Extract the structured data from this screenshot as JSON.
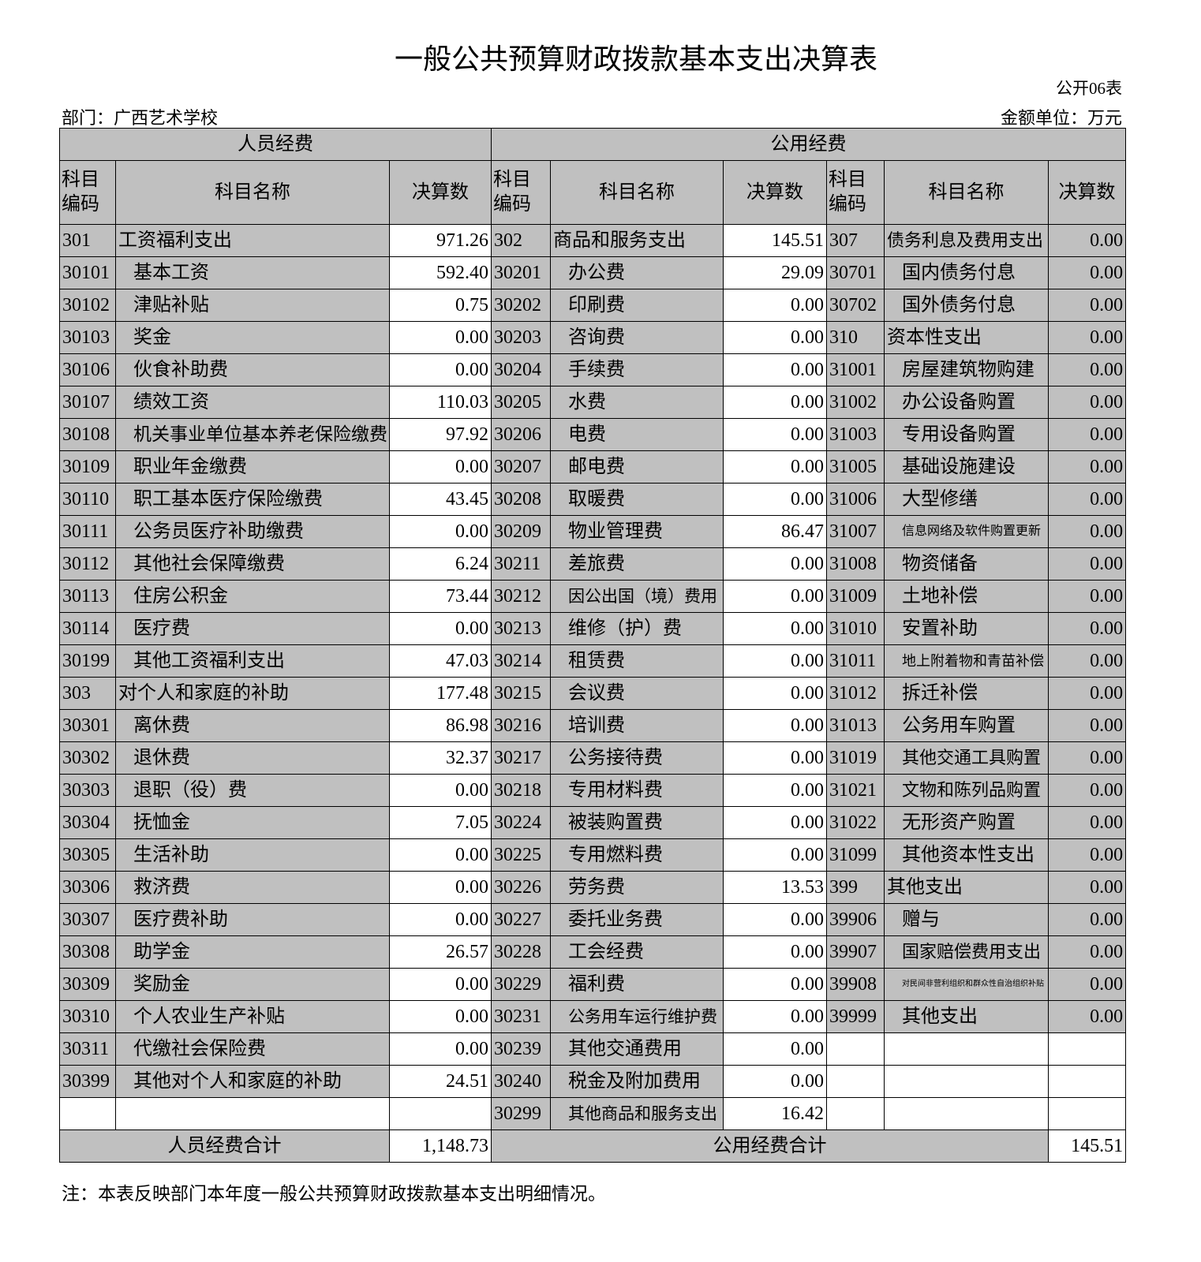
{
  "header": {
    "title": "一般公共预算财政拨款基本支出决算表",
    "form_no": "公开06表",
    "department": "部门：广西艺术学校",
    "unit": "金额单位：万元"
  },
  "table": {
    "groups": [
      "人员经费",
      "公用经费"
    ],
    "columns": [
      "科目编码",
      "科目名称",
      "决算数",
      "科目编码",
      "科目名称",
      "决算数",
      "科目编码",
      "科目名称",
      "决算数"
    ],
    "rows": [
      [
        "301",
        "工资福利支出",
        "971.26",
        "302",
        "商品和服务支出",
        "145.51",
        "307",
        "债务利息及费用支出",
        "0.00"
      ],
      [
        "30101",
        "基本工资",
        "592.40",
        "30201",
        "办公费",
        "29.09",
        "30701",
        "国内债务付息",
        "0.00"
      ],
      [
        "30102",
        "津贴补贴",
        "0.75",
        "30202",
        "印刷费",
        "0.00",
        "30702",
        "国外债务付息",
        "0.00"
      ],
      [
        "30103",
        "奖金",
        "0.00",
        "30203",
        "咨询费",
        "0.00",
        "310",
        "资本性支出",
        "0.00"
      ],
      [
        "30106",
        "伙食补助费",
        "0.00",
        "30204",
        "手续费",
        "0.00",
        "31001",
        "房屋建筑物购建",
        "0.00"
      ],
      [
        "30107",
        "绩效工资",
        "110.03",
        "30205",
        "水费",
        "0.00",
        "31002",
        "办公设备购置",
        "0.00"
      ],
      [
        "30108",
        "机关事业单位基本养老保险缴费",
        "97.92",
        "30206",
        "电费",
        "0.00",
        "31003",
        "专用设备购置",
        "0.00"
      ],
      [
        "30109",
        "职业年金缴费",
        "0.00",
        "30207",
        "邮电费",
        "0.00",
        "31005",
        "基础设施建设",
        "0.00"
      ],
      [
        "30110",
        "职工基本医疗保险缴费",
        "43.45",
        "30208",
        "取暖费",
        "0.00",
        "31006",
        "大型修缮",
        "0.00"
      ],
      [
        "30111",
        "公务员医疗补助缴费",
        "0.00",
        "30209",
        "物业管理费",
        "86.47",
        "31007",
        "信息网络及软件购置更新",
        "0.00"
      ],
      [
        "30112",
        "其他社会保障缴费",
        "6.24",
        "30211",
        "差旅费",
        "0.00",
        "31008",
        "物资储备",
        "0.00"
      ],
      [
        "30113",
        "住房公积金",
        "73.44",
        "30212",
        "因公出国（境）费用",
        "0.00",
        "31009",
        "土地补偿",
        "0.00"
      ],
      [
        "30114",
        "医疗费",
        "0.00",
        "30213",
        "维修（护）费",
        "0.00",
        "31010",
        "安置补助",
        "0.00"
      ],
      [
        "30199",
        "其他工资福利支出",
        "47.03",
        "30214",
        "租赁费",
        "0.00",
        "31011",
        "地上附着物和青苗补偿",
        "0.00"
      ],
      [
        "303",
        "对个人和家庭的补助",
        "177.48",
        "30215",
        "会议费",
        "0.00",
        "31012",
        "拆迁补偿",
        "0.00"
      ],
      [
        "30301",
        "离休费",
        "86.98",
        "30216",
        "培训费",
        "0.00",
        "31013",
        "公务用车购置",
        "0.00"
      ],
      [
        "30302",
        "退休费",
        "32.37",
        "30217",
        "公务接待费",
        "0.00",
        "31019",
        "其他交通工具购置",
        "0.00"
      ],
      [
        "30303",
        "退职（役）费",
        "0.00",
        "30218",
        "专用材料费",
        "0.00",
        "31021",
        "文物和陈列品购置",
        "0.00"
      ],
      [
        "30304",
        "抚恤金",
        "7.05",
        "30224",
        "被装购置费",
        "0.00",
        "31022",
        "无形资产购置",
        "0.00"
      ],
      [
        "30305",
        "生活补助",
        "0.00",
        "30225",
        "专用燃料费",
        "0.00",
        "31099",
        "其他资本性支出",
        "0.00"
      ],
      [
        "30306",
        "救济费",
        "0.00",
        "30226",
        "劳务费",
        "13.53",
        "399",
        "其他支出",
        "0.00"
      ],
      [
        "30307",
        "医疗费补助",
        "0.00",
        "30227",
        "委托业务费",
        "0.00",
        "39906",
        "赠与",
        "0.00"
      ],
      [
        "30308",
        "助学金",
        "26.57",
        "30228",
        "工会经费",
        "0.00",
        "39907",
        "国家赔偿费用支出",
        "0.00"
      ],
      [
        "30309",
        "奖励金",
        "0.00",
        "30229",
        "福利费",
        "0.00",
        "39908",
        "对民间非营利组织和群众性自治组织补贴",
        "0.00"
      ],
      [
        "30310",
        "个人农业生产补贴",
        "0.00",
        "30231",
        "公务用车运行维护费",
        "0.00",
        "39999",
        "其他支出",
        "0.00"
      ],
      [
        "30311",
        "代缴社会保险费",
        "0.00",
        "30239",
        "其他交通费用",
        "0.00",
        null,
        null,
        null
      ],
      [
        "30399",
        "其他对个人和家庭的补助",
        "24.51",
        "30240",
        "税金及附加费用",
        "0.00",
        null,
        null,
        null
      ],
      [
        null,
        null,
        null,
        "30299",
        "其他商品和服务支出",
        "16.42",
        null,
        null,
        null
      ]
    ],
    "totals": {
      "personnel_label": "人员经费合计",
      "personnel_value": "1,148.73",
      "public_label": "公用经费合计",
      "public_value": "145.51"
    }
  },
  "footnote": "注：本表反映部门本年度一般公共预算财政拨款基本支出明细情况。"
}
